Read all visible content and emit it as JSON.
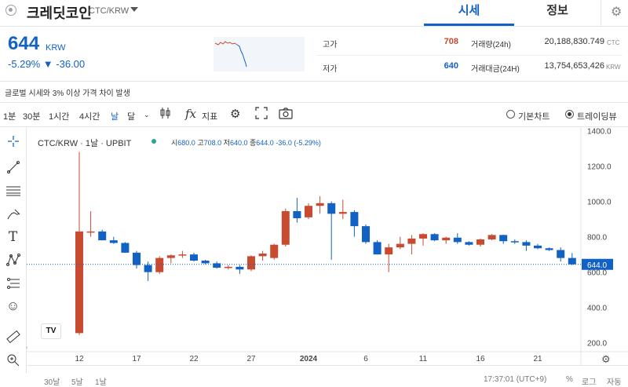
{
  "header": {
    "coin_name": "크레딧코인",
    "pair": "CTC/KRW",
    "tabs": [
      "시세",
      "정보"
    ]
  },
  "price": {
    "current": "644",
    "unit": "KRW",
    "change": "-5.29% ▼ -36.00"
  },
  "stats": {
    "high_label": "고가",
    "high_value": "708",
    "low_label": "저가",
    "low_value": "640",
    "volume_label": "거래량(24h)",
    "volume_value": "20,188,830.749",
    "volume_unit": "CTC",
    "amount_label": "거래대금(24H)",
    "amount_value": "13,754,653,426",
    "amount_unit": "KRW"
  },
  "notice": "글로벌 시세와 3% 이상 가격 차이 발생",
  "toolbar": {
    "intervals": [
      "1분",
      "30분",
      "1시간",
      "4시간",
      "날",
      "달"
    ],
    "indicator_label": "지표",
    "basic_chart": "기본차트",
    "trading_view": "트레이딩뷰"
  },
  "chart_data": {
    "type": "candlestick",
    "title": "CTC/KRW · 1날 · UPBIT",
    "ohlc_summary": {
      "o_label": "시",
      "o": "680.0",
      "h_label": "고",
      "h": "708.0",
      "l_label": "저",
      "l": "640.0",
      "c_label": "종",
      "c": "644.0",
      "chg": "-36.0",
      "pct": "(-5.29%)"
    },
    "y_ticks": [
      "1400.0",
      "1200.0",
      "1000.0",
      "800.0",
      "600.0",
      "400.0",
      "200.0"
    ],
    "ylim": [
      150,
      1420
    ],
    "x_ticks": [
      "12",
      "17",
      "22",
      "27",
      "2024",
      "6",
      "11",
      "16",
      "21"
    ],
    "last_price_label": "644.0",
    "candles": [
      {
        "o": 255,
        "h": 1280,
        "l": 245,
        "c": 830
      },
      {
        "o": 830,
        "h": 945,
        "l": 800,
        "c": 830
      },
      {
        "o": 830,
        "h": 840,
        "l": 780,
        "c": 780
      },
      {
        "o": 780,
        "h": 800,
        "l": 760,
        "c": 765
      },
      {
        "o": 765,
        "h": 770,
        "l": 710,
        "c": 710
      },
      {
        "o": 710,
        "h": 720,
        "l": 620,
        "c": 640
      },
      {
        "o": 640,
        "h": 660,
        "l": 550,
        "c": 600
      },
      {
        "o": 600,
        "h": 690,
        "l": 590,
        "c": 680
      },
      {
        "o": 680,
        "h": 700,
        "l": 650,
        "c": 695
      },
      {
        "o": 695,
        "h": 720,
        "l": 680,
        "c": 700
      },
      {
        "o": 700,
        "h": 710,
        "l": 660,
        "c": 665
      },
      {
        "o": 665,
        "h": 670,
        "l": 645,
        "c": 650
      },
      {
        "o": 650,
        "h": 660,
        "l": 620,
        "c": 625
      },
      {
        "o": 625,
        "h": 640,
        "l": 615,
        "c": 630
      },
      {
        "o": 630,
        "h": 640,
        "l": 590,
        "c": 615
      },
      {
        "o": 615,
        "h": 695,
        "l": 605,
        "c": 690
      },
      {
        "o": 690,
        "h": 720,
        "l": 665,
        "c": 705
      },
      {
        "o": 680,
        "h": 760,
        "l": 670,
        "c": 755
      },
      {
        "o": 755,
        "h": 960,
        "l": 745,
        "c": 945
      },
      {
        "o": 945,
        "h": 1020,
        "l": 880,
        "c": 905
      },
      {
        "o": 910,
        "h": 990,
        "l": 900,
        "c": 975
      },
      {
        "o": 975,
        "h": 1030,
        "l": 930,
        "c": 990
      },
      {
        "o": 990,
        "h": 1000,
        "l": 670,
        "c": 930
      },
      {
        "o": 930,
        "h": 1010,
        "l": 900,
        "c": 940
      },
      {
        "o": 940,
        "h": 950,
        "l": 800,
        "c": 860
      },
      {
        "o": 860,
        "h": 870,
        "l": 760,
        "c": 770
      },
      {
        "o": 770,
        "h": 780,
        "l": 700,
        "c": 700
      },
      {
        "o": 700,
        "h": 760,
        "l": 600,
        "c": 740
      },
      {
        "o": 740,
        "h": 800,
        "l": 730,
        "c": 760
      },
      {
        "o": 760,
        "h": 810,
        "l": 700,
        "c": 790
      },
      {
        "o": 790,
        "h": 820,
        "l": 750,
        "c": 815
      },
      {
        "o": 815,
        "h": 820,
        "l": 775,
        "c": 780
      },
      {
        "o": 780,
        "h": 800,
        "l": 760,
        "c": 795
      },
      {
        "o": 795,
        "h": 820,
        "l": 760,
        "c": 770
      },
      {
        "o": 770,
        "h": 775,
        "l": 750,
        "c": 755
      },
      {
        "o": 755,
        "h": 790,
        "l": 745,
        "c": 785
      },
      {
        "o": 785,
        "h": 815,
        "l": 780,
        "c": 810
      },
      {
        "o": 810,
        "h": 812,
        "l": 760,
        "c": 775
      },
      {
        "o": 775,
        "h": 785,
        "l": 760,
        "c": 770
      },
      {
        "o": 770,
        "h": 780,
        "l": 720,
        "c": 750
      },
      {
        "o": 750,
        "h": 760,
        "l": 730,
        "c": 735
      },
      {
        "o": 735,
        "h": 740,
        "l": 720,
        "c": 725
      },
      {
        "o": 725,
        "h": 740,
        "l": 660,
        "c": 680
      },
      {
        "o": 680,
        "h": 708,
        "l": 640,
        "c": 644
      }
    ]
  },
  "bottom": {
    "ranges": [
      "30날",
      "5날",
      "1날"
    ],
    "time": "17:37:01 (UTC+9)",
    "percent": "%",
    "log": "로그",
    "auto": "자동"
  },
  "colors": {
    "up": "#c84a31",
    "down": "#1261c4",
    "accent": "#1261c4"
  }
}
